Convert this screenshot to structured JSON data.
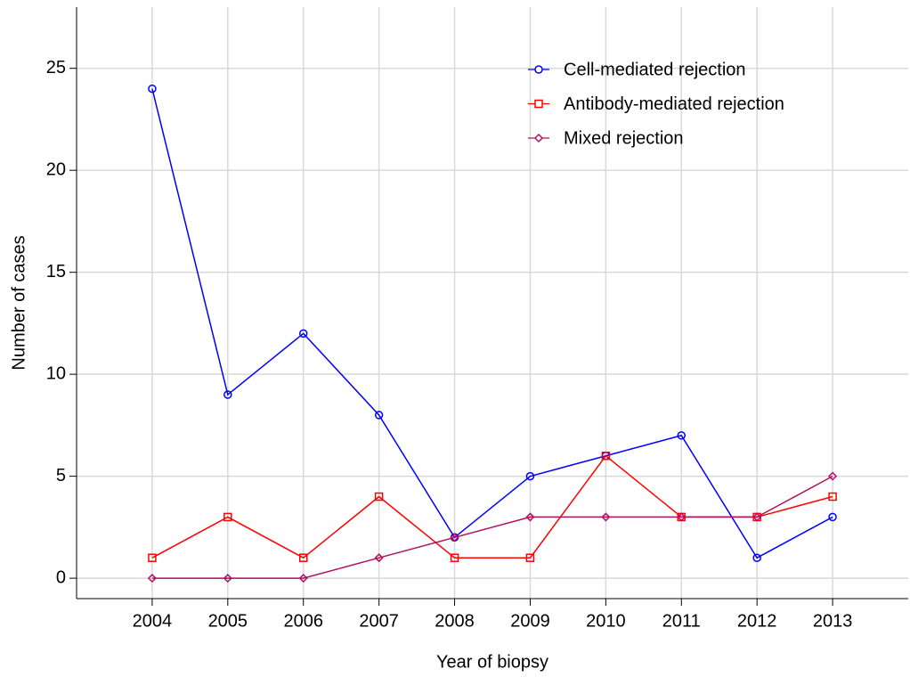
{
  "chart_data": {
    "type": "line",
    "xlabel": "Year of biopsy",
    "ylabel": "Number of cases",
    "x": [
      2004,
      2005,
      2006,
      2007,
      2008,
      2009,
      2010,
      2011,
      2012,
      2013
    ],
    "series": [
      {
        "name": "Cell-mediated rejection",
        "color": "#0000ff",
        "marker": "circle",
        "values": [
          24,
          9,
          12,
          8,
          2,
          5,
          6,
          7,
          1,
          3
        ]
      },
      {
        "name": "Antibody-mediated rejection",
        "color": "#ff0000",
        "marker": "square",
        "values": [
          1,
          3,
          1,
          4,
          1,
          1,
          6,
          3,
          3,
          4
        ]
      },
      {
        "name": "Mixed rejection",
        "color": "#b01060",
        "marker": "diamond",
        "values": [
          0,
          0,
          0,
          1,
          2,
          3,
          3,
          3,
          3,
          5
        ]
      }
    ],
    "xlim": [
      2003,
      2014
    ],
    "xticks": [
      2004,
      2005,
      2006,
      2007,
      2008,
      2009,
      2010,
      2011,
      2012,
      2013
    ],
    "ylim": [
      -1,
      28
    ],
    "yticks": [
      0,
      5,
      10,
      15,
      20,
      25
    ],
    "grid": true,
    "legend": "upper-right"
  }
}
